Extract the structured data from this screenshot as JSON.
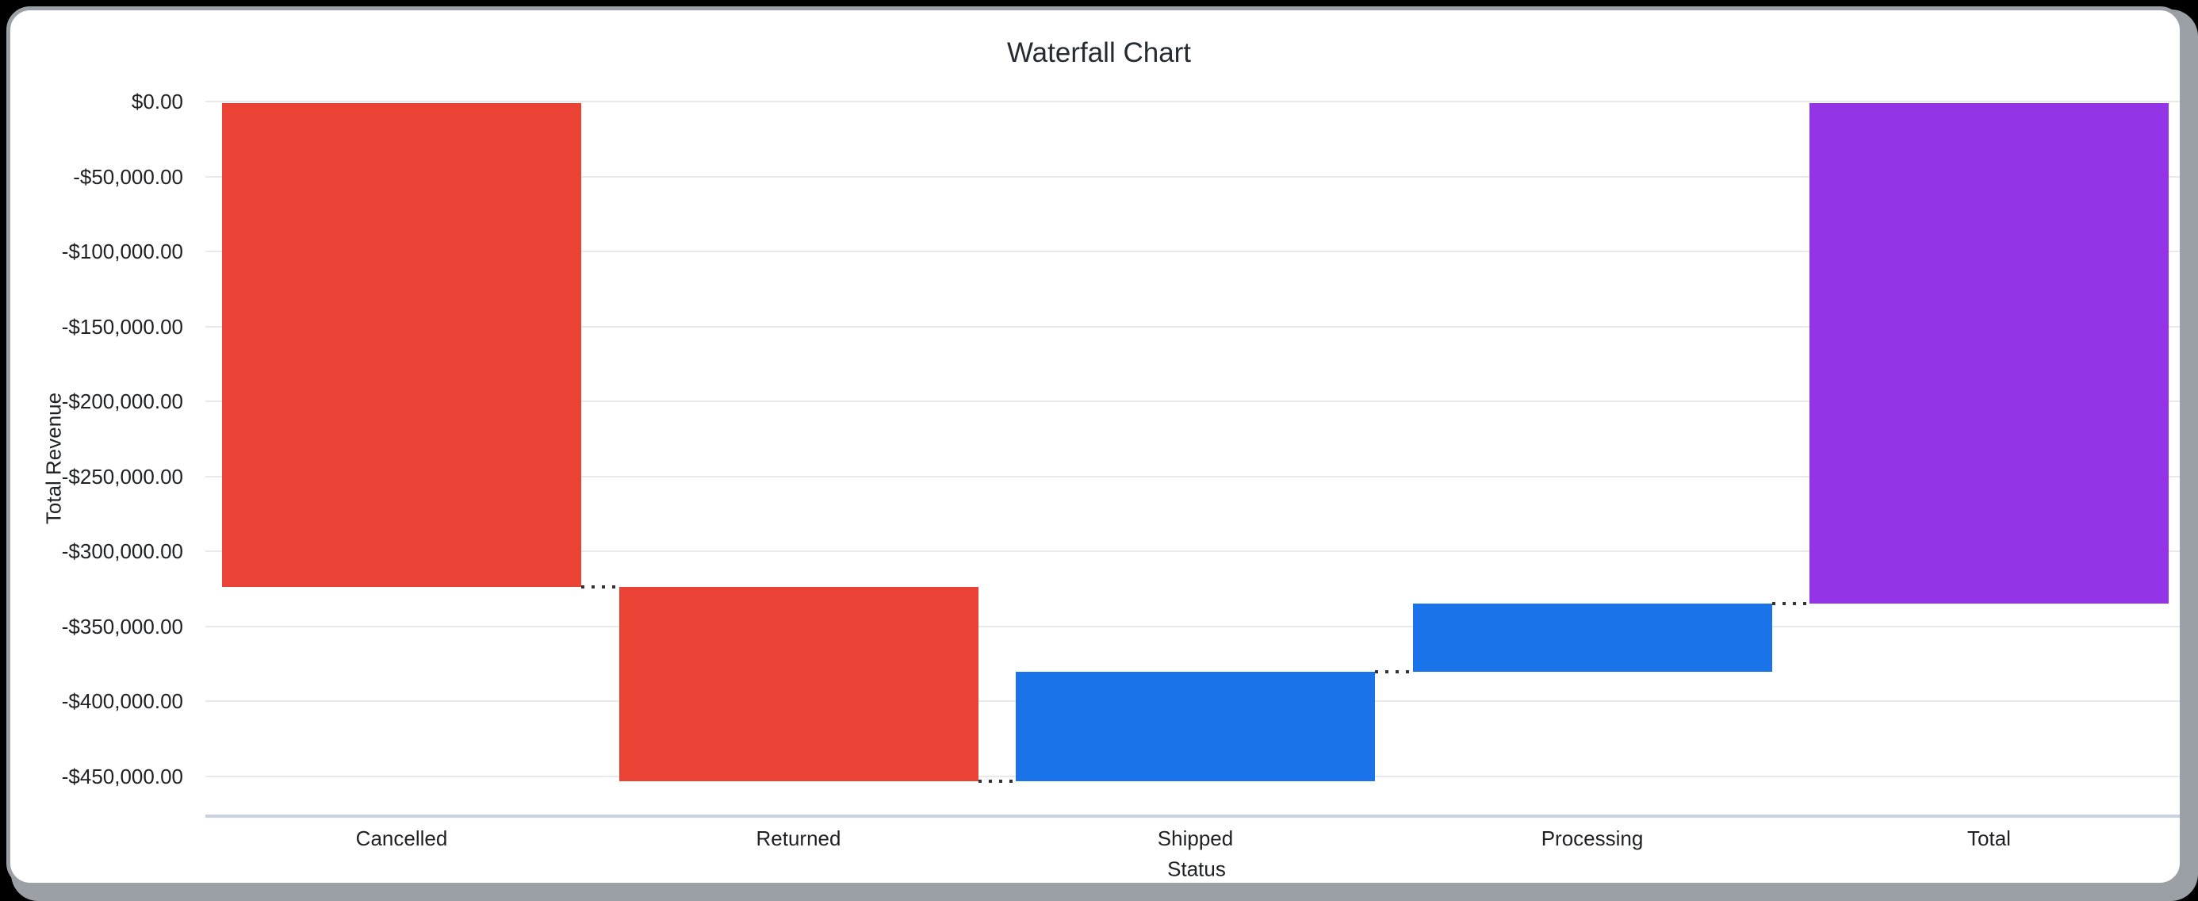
{
  "frame": {
    "background_color": "#000000",
    "card_background": "#ffffff",
    "card_border_color": "#9aa0a6"
  },
  "chart_data": {
    "type": "bar",
    "subtype": "waterfall",
    "title": "Waterfall Chart",
    "xlabel": "Status",
    "ylabel": "Total Revenue",
    "categories": [
      "Cancelled",
      "Returned",
      "Shipped",
      "Processing",
      "Total"
    ],
    "bars": [
      {
        "label": "Cancelled",
        "delta": -323600,
        "kind": "decrease"
      },
      {
        "label": "Returned",
        "delta": -129600,
        "kind": "decrease"
      },
      {
        "label": "Shipped",
        "delta": 73000,
        "kind": "increase"
      },
      {
        "label": "Processing",
        "delta": 45500,
        "kind": "increase"
      },
      {
        "label": "Total",
        "delta": -334700,
        "kind": "total"
      }
    ],
    "cumulative_values": [
      -323600,
      -453200,
      -380200,
      -334700,
      -334700
    ],
    "y_axis": {
      "max": 0,
      "min": -450000,
      "tick_step": -50000,
      "ticks": [
        0,
        -50000,
        -100000,
        -150000,
        -200000,
        -250000,
        -300000,
        -350000,
        -400000,
        -450000
      ],
      "tick_labels": [
        "$0.00",
        "-$50,000.00",
        "-$100,000.00",
        "-$150,000.00",
        "-$200,000.00",
        "-$250,000.00",
        "-$300,000.00",
        "-$350,000.00",
        "-$400,000.00",
        "-$450,000.00"
      ]
    },
    "colors": {
      "decrease": "#EA4335",
      "increase": "#1A73E8",
      "total": "#9334E6"
    },
    "gridline_color": "#e9e9e9",
    "axis_line_color": "#c9d2e4",
    "connector_color": "#333333",
    "text_color": "#202124",
    "title_color": "#242b33",
    "grid": true,
    "legend": "none"
  }
}
